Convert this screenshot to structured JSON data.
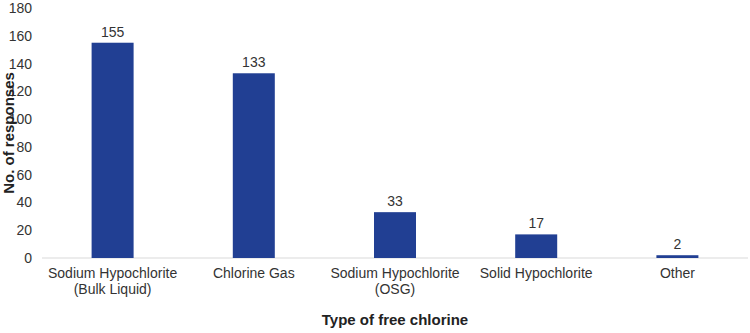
{
  "chart_data": {
    "type": "bar",
    "x_label": "Type of free chlorine",
    "y_label": "No. of responses",
    "categories": [
      "Sodium Hypochlorite (Bulk Liquid)",
      "Chlorine Gas",
      "Sodium Hypochlorite (OSG)",
      "Solid Hypochlorite",
      "Other"
    ],
    "values": [
      155,
      133,
      33,
      17,
      2
    ],
    "color": "#213f93",
    "ylim": [
      0,
      180
    ],
    "yticks": [
      0,
      20,
      40,
      60,
      80,
      100,
      120,
      140,
      160,
      180
    ],
    "grid": false,
    "data_labels": true
  }
}
